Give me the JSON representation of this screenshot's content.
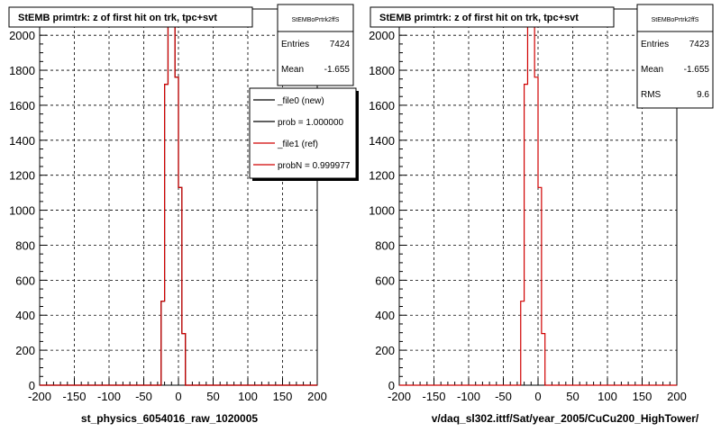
{
  "chart_data": [
    {
      "type": "bar",
      "title": "StEMB primtrk: z of first hit on trk, tpc+svt",
      "xlabel": "st_physics_6054016_raw_1020005",
      "xlim": [
        -200,
        200
      ],
      "ylim": [
        0,
        2150
      ],
      "xticks": [
        -200,
        -150,
        -100,
        -50,
        0,
        50,
        100,
        150,
        200
      ],
      "yticks": [
        0,
        200,
        400,
        600,
        800,
        1000,
        1200,
        1400,
        1600,
        1800,
        2000
      ],
      "grid": true,
      "bin_width": 5,
      "series": [
        {
          "name": "_file0 (new)",
          "color": "#000000",
          "bins": [
            [
              -25,
              480
            ],
            [
              -20,
              1720
            ],
            [
              -15,
              2060
            ],
            [
              -10,
              2060
            ],
            [
              -5,
              1760
            ],
            [
              0,
              1130
            ],
            [
              5,
              295
            ],
            [
              10,
              0
            ]
          ]
        },
        {
          "name": "_file1 (ref)",
          "color": "#d00000",
          "bins": [
            [
              -25,
              480
            ],
            [
              -20,
              1720
            ],
            [
              -15,
              2060
            ],
            [
              -10,
              2060
            ],
            [
              -5,
              1760
            ],
            [
              0,
              1130
            ],
            [
              5,
              295
            ],
            [
              10,
              0
            ]
          ]
        }
      ],
      "stats": {
        "name": "StEMBoPrtrk2ffS",
        "rows": [
          {
            "label": "Entries",
            "value": "7424"
          },
          {
            "label": "Mean",
            "value": "-1.655"
          }
        ]
      },
      "legend": [
        {
          "label": "_file0 (new)",
          "color": "#000000"
        },
        {
          "label": "prob = 1.000000",
          "color": "#000000"
        },
        {
          "label": "_file1 (ref)",
          "color": "#d00000"
        },
        {
          "label": "probN = 0.999977",
          "color": "#d00000"
        }
      ]
    },
    {
      "type": "bar",
      "title": "StEMB primtrk: z of first hit on trk, tpc+svt",
      "xlabel": "v/daq_sl302.ittf/Sat/year_2005/CuCu200_HighTower/",
      "xlim": [
        -200,
        200
      ],
      "ylim": [
        0,
        2150
      ],
      "xticks": [
        -200,
        -150,
        -100,
        -50,
        0,
        50,
        100,
        150,
        200
      ],
      "yticks": [
        0,
        200,
        400,
        600,
        800,
        1000,
        1200,
        1400,
        1600,
        1800,
        2000
      ],
      "grid": true,
      "bin_width": 5,
      "series": [
        {
          "name": "_file1 (ref)",
          "color": "#d00000",
          "bins": [
            [
              -25,
              480
            ],
            [
              -20,
              1720
            ],
            [
              -15,
              2060
            ],
            [
              -10,
              2060
            ],
            [
              -5,
              1760
            ],
            [
              0,
              1130
            ],
            [
              5,
              295
            ],
            [
              10,
              0
            ]
          ]
        }
      ],
      "stats": {
        "name": "StEMBoPrtrk2ffS",
        "rows": [
          {
            "label": "Entries",
            "value": "7423"
          },
          {
            "label": "Mean",
            "value": "-1.655"
          },
          {
            "label": "RMS",
            "value": "9.6"
          }
        ]
      }
    }
  ]
}
